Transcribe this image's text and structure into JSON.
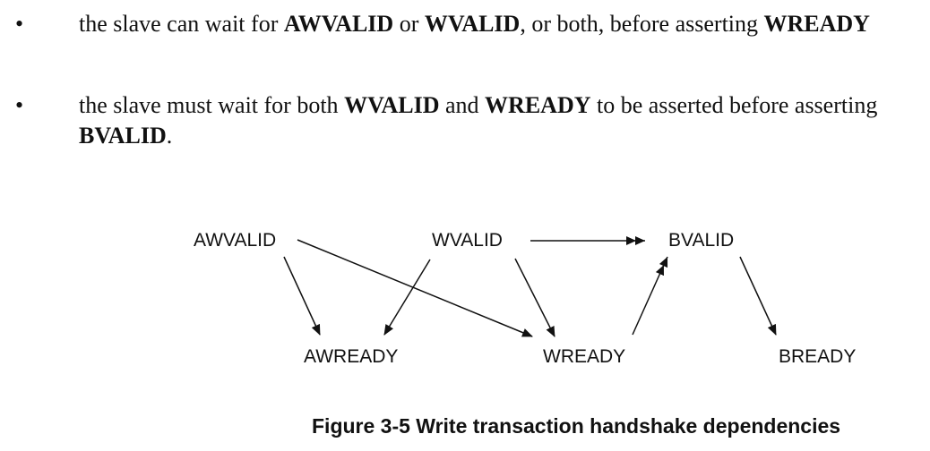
{
  "bullets": [
    {
      "symbol": "•",
      "parts": [
        {
          "text": "the slave can wait for "
        },
        {
          "text": "AWVALID",
          "bold": true
        },
        {
          "text": " or "
        },
        {
          "text": "WVALID",
          "bold": true
        },
        {
          "text": ", or both, before asserting "
        },
        {
          "text": "WREADY",
          "bold": true
        }
      ]
    },
    {
      "symbol": "•",
      "parts": [
        {
          "text": "the slave must wait for both "
        },
        {
          "text": "WVALID",
          "bold": true
        },
        {
          "text": " and "
        },
        {
          "text": "WREADY",
          "bold": true
        },
        {
          "text": " to be asserted before asserting "
        },
        {
          "text": "BVALID",
          "bold": true
        },
        {
          "text": "."
        }
      ]
    }
  ],
  "diagram": {
    "nodes": {
      "awvalid": "AWVALID",
      "wvalid": "WVALID",
      "bvalid": "BVALID",
      "awready": "AWREADY",
      "wready": "WREADY",
      "bready": "BREADY"
    },
    "edges": [
      {
        "from": "AWVALID",
        "to": "AWREADY",
        "head": "single"
      },
      {
        "from": "AWVALID",
        "to": "WREADY",
        "head": "single"
      },
      {
        "from": "WVALID",
        "to": "AWREADY",
        "head": "single"
      },
      {
        "from": "WVALID",
        "to": "WREADY",
        "head": "single"
      },
      {
        "from": "WVALID",
        "to": "BVALID",
        "head": "double"
      },
      {
        "from": "WREADY",
        "to": "BVALID",
        "head": "double"
      },
      {
        "from": "BVALID",
        "to": "BREADY",
        "head": "single"
      }
    ]
  },
  "caption": "Figure 3-5 Write transaction handshake dependencies"
}
